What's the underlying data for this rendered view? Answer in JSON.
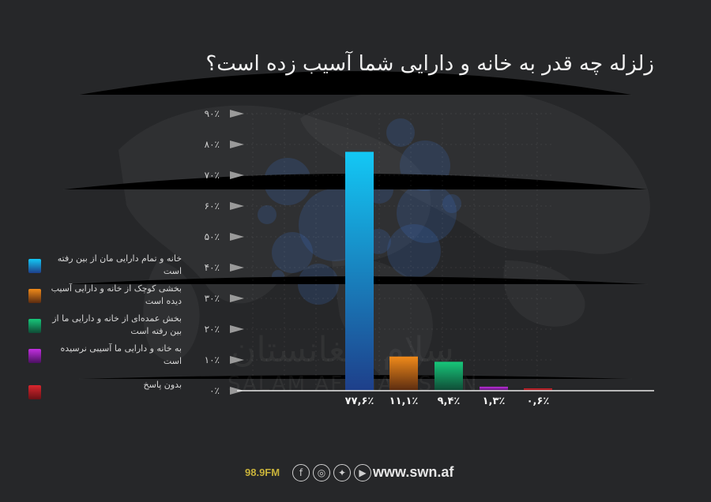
{
  "title": "زلزله چه قدر به خانه و دارایی شما آسیب زده است؟",
  "watermark": {
    "fa": "سلام افغانستان",
    "en": "SALAM AFGHANISTAN"
  },
  "legend": [
    {
      "label": "خانه و تمام دارایی مان از بین رفته است",
      "color": "#1e9be8"
    },
    {
      "label": "بخشی کوچک از خانه و دارایی آسیب دیده است",
      "color": "#e8701a"
    },
    {
      "label": "بخش عمده‌ای از خانه و دارایی ما از بین رفته است",
      "color": "#17b06a"
    },
    {
      "label": "به خانه و دارایی ما آسیبی نرسیده است",
      "color": "#b81fd0"
    },
    {
      "label": "بدون پاسخ",
      "color": "#c9262e"
    }
  ],
  "chart_data": {
    "type": "bar",
    "title": "زلزله چه قدر به خانه و دارایی شما آسیب زده است؟",
    "xlabel": "",
    "ylabel": "",
    "ylim": [
      0,
      90
    ],
    "yticks": [
      0,
      10,
      20,
      30,
      40,
      50,
      60,
      70,
      80,
      90
    ],
    "ytick_labels": [
      "۰٪",
      "۱۰٪",
      "۲۰٪",
      "۳۰٪",
      "۴۰٪",
      "۵۰٪",
      "۶۰٪",
      "۷۰٪",
      "۸۰٪",
      "۹۰٪"
    ],
    "grid": true,
    "legend_position": "left",
    "categories": [
      "خانه و تمام دارایی مان از بین رفته است",
      "بخشی کوچک از خانه و دارایی آسیب دیده است",
      "بخش عمده‌ای از خانه و دارایی ما از بین رفته است",
      "به خانه و دارایی ما آسیبی نرسیده است",
      "بدون پاسخ"
    ],
    "values": [
      77.6,
      11.1,
      9.4,
      1.3,
      0.6
    ],
    "value_labels": [
      "۷۷,۶٪",
      "۱۱,۱٪",
      "۹,۴٪",
      "۱,۳٪",
      "۰,۶٪"
    ],
    "colors": [
      [
        "#13c8f5",
        "#1e3f8a"
      ],
      [
        "#f08a1a",
        "#5a2b10"
      ],
      [
        "#17c77a",
        "#0f4a35"
      ],
      [
        "#c22fe0",
        "#4a1060"
      ],
      [
        "#d9262e",
        "#6a1015"
      ]
    ]
  },
  "footer": {
    "frequency": "98.9FM",
    "website": "www.swn.af",
    "social_icons": [
      "facebook-icon",
      "instagram-icon",
      "twitter-icon",
      "youtube-icon"
    ]
  }
}
